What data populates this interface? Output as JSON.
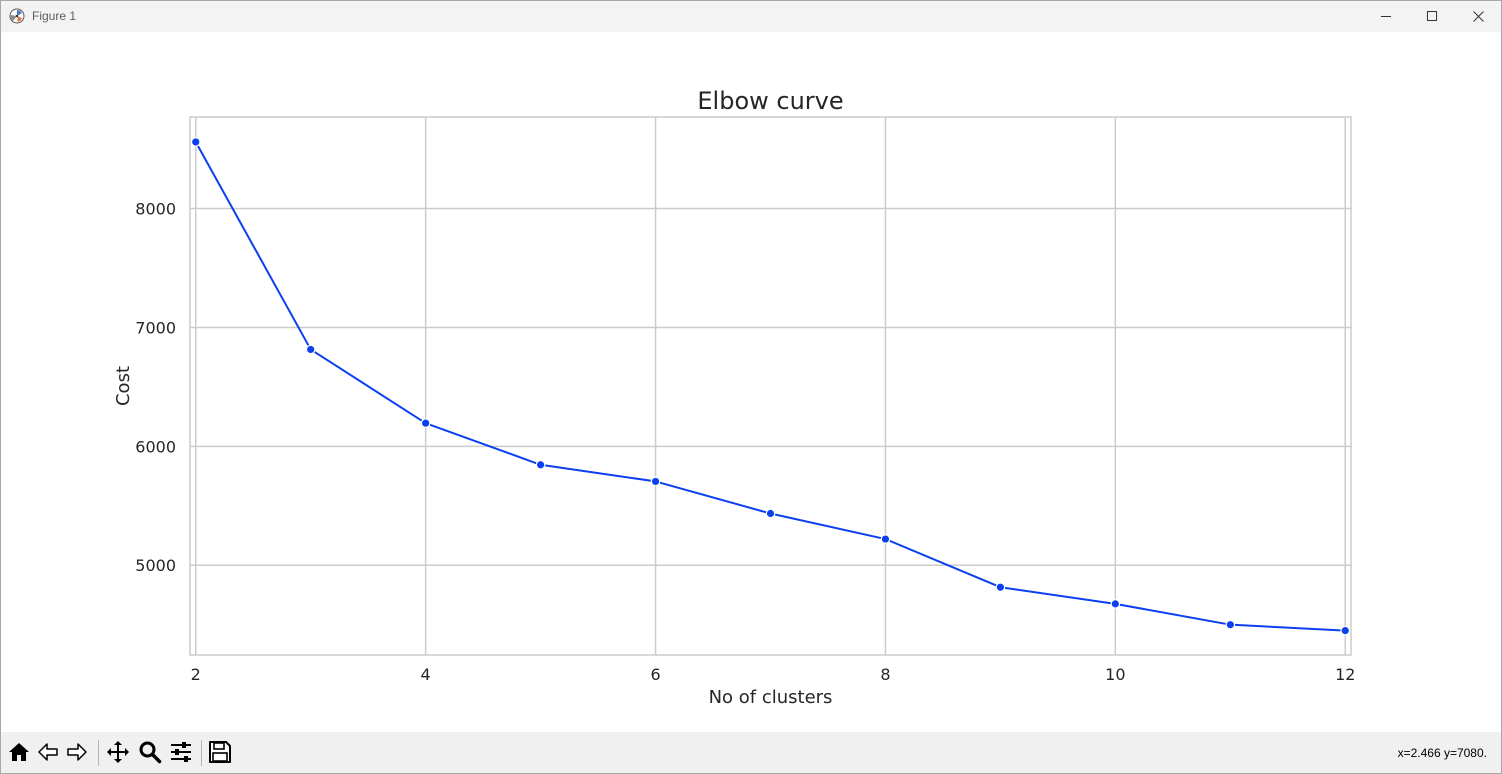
{
  "window": {
    "title": "Figure 1",
    "controls": {
      "minimize_icon": "minimize-icon",
      "maximize_icon": "maximize-icon",
      "close_icon": "close-icon"
    }
  },
  "toolbar": {
    "buttons": [
      {
        "name": "home",
        "icon": "home-icon"
      },
      {
        "name": "back",
        "icon": "back-arrow-icon"
      },
      {
        "name": "forward",
        "icon": "forward-arrow-icon"
      },
      {
        "name": "pan",
        "icon": "move-icon"
      },
      {
        "name": "zoom",
        "icon": "zoom-icon"
      },
      {
        "name": "configure-subplots",
        "icon": "sliders-icon"
      },
      {
        "name": "save",
        "icon": "save-icon"
      }
    ],
    "coords": "x=2.466 y=7080."
  },
  "chart_data": {
    "type": "line",
    "title": "Elbow curve",
    "xlabel": "No of clusters",
    "ylabel": "Cost",
    "x": [
      2,
      3,
      4,
      5,
      6,
      7,
      8,
      9,
      10,
      11,
      12
    ],
    "series": [
      {
        "values": [
          8560,
          6815,
          6195,
          5845,
          5705,
          5435,
          5220,
          4815,
          4675,
          4500,
          4450
        ]
      }
    ],
    "xticks": [
      "2",
      "4",
      "6",
      "8",
      "10",
      "12"
    ],
    "yticks": [
      "5000",
      "6000",
      "7000",
      "8000"
    ],
    "xlim": [
      1.95,
      12.05
    ],
    "ylim": [
      4245,
      8770
    ],
    "grid": true,
    "line_color": "#0b3ff0",
    "grid_color": "#cccccc"
  }
}
